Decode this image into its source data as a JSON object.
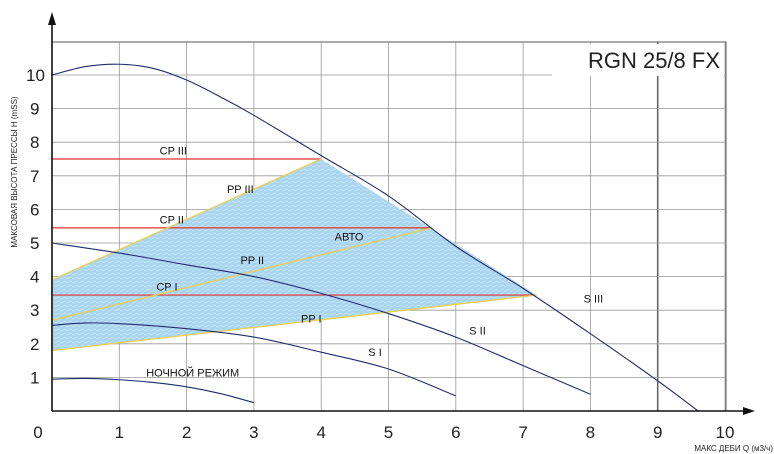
{
  "chart_data": {
    "type": "line",
    "title": "RGN 25/8 FX",
    "xlabel": "МАКС ДЕБИ Q (м3/ч)",
    "ylabel": "МАКСОВАЯ ВЫСОТА ПРЕССЫ H (mSS)",
    "xlim": [
      0,
      10
    ],
    "ylim": [
      0,
      11
    ],
    "x_ticks": [
      0,
      1,
      2,
      3,
      4,
      5,
      6,
      7,
      8,
      9,
      10
    ],
    "y_ticks": [
      1,
      2,
      3,
      4,
      5,
      6,
      7,
      8,
      9,
      10
    ],
    "grid": true,
    "fill_color": "#a8d4ef",
    "constant_pressure_color": "#e0322f",
    "proportional_pressure_color": "#e8d05a",
    "curve_color": "#1f2e6e",
    "series": [
      {
        "name": "S III",
        "points": [
          [
            0,
            10.0
          ],
          [
            0.5,
            10.25
          ],
          [
            1.0,
            10.32
          ],
          [
            1.5,
            10.2
          ],
          [
            2.0,
            9.85
          ],
          [
            2.5,
            9.35
          ],
          [
            3.0,
            8.8
          ],
          [
            4.0,
            7.6
          ],
          [
            5.0,
            6.4
          ],
          [
            6.0,
            4.9
          ],
          [
            7.0,
            3.65
          ],
          [
            8.0,
            2.3
          ],
          [
            9.0,
            0.9
          ],
          [
            9.6,
            0.0
          ]
        ]
      },
      {
        "name": "S II",
        "points": [
          [
            0,
            5.0
          ],
          [
            1.0,
            4.7
          ],
          [
            2.0,
            4.35
          ],
          [
            3.0,
            4.0
          ],
          [
            4.0,
            3.5
          ],
          [
            5.0,
            2.9
          ],
          [
            6.0,
            2.2
          ],
          [
            7.0,
            1.35
          ],
          [
            8.0,
            0.5
          ]
        ]
      },
      {
        "name": "S I",
        "points": [
          [
            0,
            2.55
          ],
          [
            0.5,
            2.62
          ],
          [
            1.0,
            2.6
          ],
          [
            2.0,
            2.45
          ],
          [
            3.0,
            2.2
          ],
          [
            4.0,
            1.75
          ],
          [
            5.0,
            1.25
          ],
          [
            6.0,
            0.45
          ]
        ]
      },
      {
        "name": "НОЧНОЙ РЕЖИМ",
        "points": [
          [
            0,
            0.95
          ],
          [
            0.5,
            0.97
          ],
          [
            1.0,
            0.93
          ],
          [
            1.5,
            0.85
          ],
          [
            2.0,
            0.72
          ],
          [
            2.5,
            0.52
          ],
          [
            3.0,
            0.25
          ]
        ]
      },
      {
        "name": "PP III",
        "points": [
          [
            0,
            3.9
          ],
          [
            4.0,
            7.5
          ]
        ]
      },
      {
        "name": "PP II",
        "points": [
          [
            0,
            2.7
          ],
          [
            5.65,
            5.45
          ]
        ]
      },
      {
        "name": "PP I",
        "points": [
          [
            0,
            1.8
          ],
          [
            7.2,
            3.45
          ]
        ]
      },
      {
        "name": "CP III",
        "points": [
          [
            0,
            7.5
          ],
          [
            4.0,
            7.5
          ]
        ]
      },
      {
        "name": "CP II",
        "points": [
          [
            0,
            5.45
          ],
          [
            5.65,
            5.45
          ]
        ]
      },
      {
        "name": "CP I",
        "points": [
          [
            0,
            3.45
          ],
          [
            7.2,
            3.45
          ]
        ]
      }
    ],
    "auto_region": {
      "label": "АВТО",
      "polygon": [
        [
          0,
          1.8
        ],
        [
          0,
          3.9
        ],
        [
          4.0,
          7.5
        ],
        [
          7.2,
          3.45
        ]
      ]
    },
    "annotations": [
      {
        "text": "CP III",
        "x": 1.6,
        "y": 7.75
      },
      {
        "text": "PP III",
        "x": 2.6,
        "y": 6.6
      },
      {
        "text": "CP II",
        "x": 1.6,
        "y": 5.7
      },
      {
        "text": "АВТО",
        "x": 4.2,
        "y": 5.2
      },
      {
        "text": "PP II",
        "x": 2.8,
        "y": 4.5
      },
      {
        "text": "CP I",
        "x": 1.55,
        "y": 3.7
      },
      {
        "text": "PP I",
        "x": 3.7,
        "y": 2.75
      },
      {
        "text": "S III",
        "x": 7.9,
        "y": 3.35
      },
      {
        "text": "S II",
        "x": 6.2,
        "y": 2.4
      },
      {
        "text": "S I",
        "x": 4.7,
        "y": 1.75
      },
      {
        "text": "НОЧНОЙ РЕЖИМ",
        "x": 1.4,
        "y": 1.15
      }
    ]
  }
}
